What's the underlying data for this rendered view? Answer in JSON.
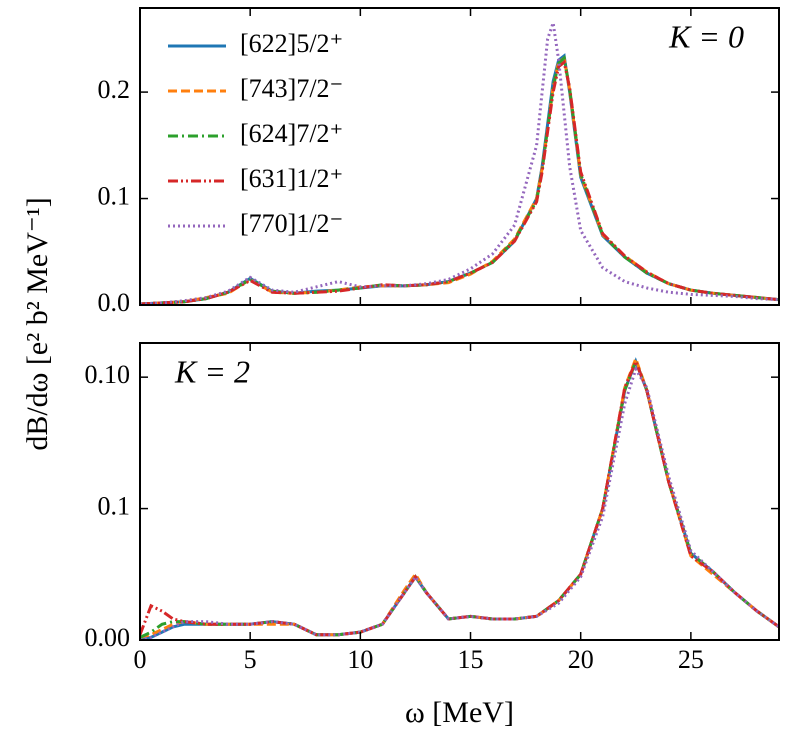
{
  "chart_data": [
    {
      "type": "line",
      "annotation": "K = 0",
      "legend": "upper left",
      "xlim": [
        0,
        29
      ],
      "xticks": [
        0,
        5,
        10,
        15,
        20,
        25
      ],
      "show_xticklabels": false,
      "ylim": [
        0,
        0.279
      ],
      "yticks": [
        0.0,
        0.1,
        0.2
      ],
      "x": [
        0,
        1,
        2,
        3,
        4,
        5,
        6,
        7,
        8,
        9,
        10,
        11,
        12,
        13,
        14,
        15,
        16,
        17,
        18,
        18.25,
        18.5,
        18.75,
        19,
        19.25,
        19.5,
        20,
        21,
        22,
        23,
        24,
        25,
        26,
        27,
        28,
        29
      ],
      "series": [
        {
          "name": "[622]5/2⁺",
          "color": "#1f77b4",
          "linestyle": "solid",
          "values": [
            0.001,
            0.002,
            0.003,
            0.006,
            0.012,
            0.025,
            0.013,
            0.011,
            0.013,
            0.014,
            0.016,
            0.018,
            0.018,
            0.019,
            0.022,
            0.03,
            0.04,
            0.06,
            0.1,
            0.13,
            0.17,
            0.21,
            0.23,
            0.234,
            0.2,
            0.12,
            0.065,
            0.045,
            0.03,
            0.02,
            0.014,
            0.011,
            0.009,
            0.007,
            0.005
          ]
        },
        {
          "name": "[743]7/2⁻",
          "color": "#ff7f0e",
          "linestyle": "dashed",
          "values": [
            0.001,
            0.002,
            0.003,
            0.007,
            0.011,
            0.024,
            0.012,
            0.011,
            0.012,
            0.014,
            0.017,
            0.018,
            0.018,
            0.019,
            0.021,
            0.029,
            0.041,
            0.062,
            0.1,
            0.128,
            0.165,
            0.205,
            0.228,
            0.232,
            0.202,
            0.122,
            0.066,
            0.046,
            0.031,
            0.02,
            0.014,
            0.011,
            0.009,
            0.007,
            0.005
          ]
        },
        {
          "name": "[624]7/2⁺",
          "color": "#2ca02c",
          "linestyle": "dashdot",
          "values": [
            0.001,
            0.002,
            0.003,
            0.006,
            0.012,
            0.024,
            0.013,
            0.011,
            0.012,
            0.014,
            0.016,
            0.019,
            0.018,
            0.019,
            0.022,
            0.03,
            0.04,
            0.061,
            0.098,
            0.127,
            0.166,
            0.205,
            0.227,
            0.232,
            0.203,
            0.123,
            0.066,
            0.045,
            0.03,
            0.02,
            0.014,
            0.011,
            0.009,
            0.007,
            0.005
          ]
        },
        {
          "name": "[631]1/2⁺",
          "color": "#d62728",
          "linestyle": "dashdotdot",
          "values": [
            0.001,
            0.002,
            0.003,
            0.006,
            0.012,
            0.023,
            0.012,
            0.011,
            0.012,
            0.013,
            0.016,
            0.019,
            0.018,
            0.019,
            0.022,
            0.03,
            0.04,
            0.06,
            0.097,
            0.125,
            0.163,
            0.2,
            0.224,
            0.228,
            0.204,
            0.125,
            0.067,
            0.046,
            0.031,
            0.02,
            0.014,
            0.011,
            0.009,
            0.007,
            0.005
          ]
        },
        {
          "name": "[770]1/2⁻",
          "color": "#9467bd",
          "linestyle": "dotted",
          "values": [
            0.001,
            0.002,
            0.004,
            0.007,
            0.013,
            0.026,
            0.014,
            0.012,
            0.017,
            0.022,
            0.017,
            0.018,
            0.018,
            0.02,
            0.024,
            0.034,
            0.048,
            0.075,
            0.15,
            0.2,
            0.25,
            0.265,
            0.23,
            0.18,
            0.13,
            0.07,
            0.035,
            0.022,
            0.016,
            0.012,
            0.01,
            0.009,
            0.008,
            0.006,
            0.005
          ]
        }
      ]
    },
    {
      "type": "line",
      "annotation": "K = 2",
      "xlabel": "ω  [MeV]",
      "ylabel": "dB/dω  [e² b² MeV⁻¹]",
      "xlim": [
        0,
        29
      ],
      "xticks": [
        0,
        5,
        10,
        15,
        20,
        25
      ],
      "show_xticklabels": true,
      "ylim": [
        0,
        0.113
      ],
      "yticks": [
        {
          "value": 0,
          "label": "0.00"
        },
        0.05,
        {
          "value": 0.1,
          "label": "0.10"
        }
      ],
      "x": [
        0,
        0.5,
        1,
        1.5,
        2,
        3,
        4,
        5,
        6,
        7,
        8,
        9,
        10,
        11,
        12,
        12.5,
        13,
        14,
        15,
        16,
        17,
        18,
        19,
        20,
        21,
        22,
        22.5,
        23,
        24,
        25,
        26,
        27,
        28,
        29
      ],
      "series": [
        {
          "name": "[622]5/2⁺",
          "color": "#1f77b4",
          "linestyle": "solid",
          "values": [
            0,
            0.001,
            0.003,
            0.005,
            0.006,
            0.006,
            0.006,
            0.006,
            0.007,
            0.006,
            0.002,
            0.002,
            0.003,
            0.006,
            0.018,
            0.024,
            0.018,
            0.008,
            0.009,
            0.008,
            0.008,
            0.009,
            0.015,
            0.025,
            0.05,
            0.095,
            0.106,
            0.095,
            0.06,
            0.033,
            0.026,
            0.018,
            0.011,
            0.005
          ]
        },
        {
          "name": "[743]7/2⁻",
          "color": "#ff7f0e",
          "linestyle": "dashed",
          "values": [
            0.001,
            0.002,
            0.004,
            0.006,
            0.007,
            0.006,
            0.006,
            0.006,
            0.006,
            0.006,
            0.002,
            0.002,
            0.003,
            0.006,
            0.019,
            0.025,
            0.018,
            0.008,
            0.009,
            0.008,
            0.008,
            0.009,
            0.015,
            0.025,
            0.05,
            0.096,
            0.107,
            0.095,
            0.06,
            0.032,
            0.025,
            0.018,
            0.011,
            0.005
          ]
        },
        {
          "name": "[624]7/2⁺",
          "color": "#2ca02c",
          "linestyle": "dashdot",
          "values": [
            0.001,
            0.003,
            0.006,
            0.007,
            0.007,
            0.006,
            0.006,
            0.006,
            0.007,
            0.006,
            0.002,
            0.002,
            0.003,
            0.006,
            0.018,
            0.024,
            0.018,
            0.008,
            0.009,
            0.008,
            0.008,
            0.009,
            0.015,
            0.025,
            0.05,
            0.095,
            0.106,
            0.095,
            0.06,
            0.033,
            0.026,
            0.018,
            0.011,
            0.005
          ]
        },
        {
          "name": "[631]1/2⁺",
          "color": "#d62728",
          "linestyle": "dashdotdot",
          "values": [
            0.002,
            0.013,
            0.011,
            0.008,
            0.007,
            0.006,
            0.006,
            0.006,
            0.007,
            0.006,
            0.002,
            0.002,
            0.003,
            0.006,
            0.018,
            0.024,
            0.018,
            0.008,
            0.009,
            0.008,
            0.008,
            0.009,
            0.015,
            0.025,
            0.05,
            0.096,
            0.106,
            0.095,
            0.06,
            0.032,
            0.026,
            0.018,
            0.011,
            0.005
          ]
        },
        {
          "name": "[770]1/2⁻",
          "color": "#9467bd",
          "linestyle": "dotted",
          "values": [
            0,
            0.001,
            0.003,
            0.005,
            0.007,
            0.007,
            0.006,
            0.006,
            0.007,
            0.006,
            0.002,
            0.002,
            0.003,
            0.006,
            0.018,
            0.024,
            0.018,
            0.008,
            0.009,
            0.008,
            0.008,
            0.009,
            0.014,
            0.024,
            0.047,
            0.09,
            0.103,
            0.096,
            0.062,
            0.034,
            0.026,
            0.018,
            0.011,
            0.005
          ]
        }
      ]
    }
  ]
}
